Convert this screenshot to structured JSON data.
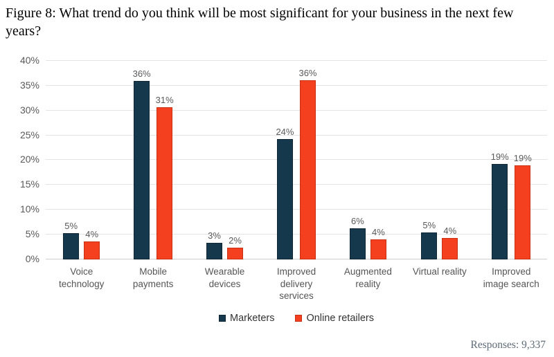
{
  "title": "Figure 8: What trend do you think will be most significant for your business in the next few years?",
  "footer": {
    "responses": "Responses: 9,337"
  },
  "colors": {
    "marketers": "#16384d",
    "marketers_border": "#0d2736",
    "online_retailers": "#f4401e",
    "online_retailers_border": "#c92f13",
    "gridline": "#e4e4e4",
    "axis_text": "#595959"
  },
  "chart_data": {
    "type": "bar",
    "title": "Figure 8: What trend do you think will be most significant for your business in the next few years?",
    "categories": [
      "Voice technology",
      "Mobile payments",
      "Wearable devices",
      "Improved delivery services",
      "Augmented reality",
      "Virtual reality",
      "Improved image search"
    ],
    "series": [
      {
        "name": "Marketers",
        "color": "#16384d",
        "border_color": "#0d2736",
        "values": [
          5.3,
          36,
          3.3,
          24.2,
          6.3,
          5.4,
          19.3
        ],
        "labels": [
          "5%",
          "36%",
          "3%",
          "24%",
          "6%",
          "5%",
          "19%"
        ]
      },
      {
        "name": "Online retailers",
        "color": "#f4401e",
        "border_color": "#c92f13",
        "values": [
          3.6,
          30.6,
          2.4,
          36.1,
          4.0,
          4.3,
          18.9
        ],
        "labels": [
          "4%",
          "31%",
          "2%",
          "36%",
          "4%",
          "4%",
          "19%"
        ]
      }
    ],
    "xlabel": "",
    "ylabel": "",
    "ylim": [
      0,
      40
    ],
    "ytick_step": 5,
    "yticks": [
      "0%",
      "5%",
      "10%",
      "15%",
      "20%",
      "25%",
      "30%",
      "35%",
      "40%"
    ],
    "grid": true,
    "legend_position": "bottom"
  }
}
